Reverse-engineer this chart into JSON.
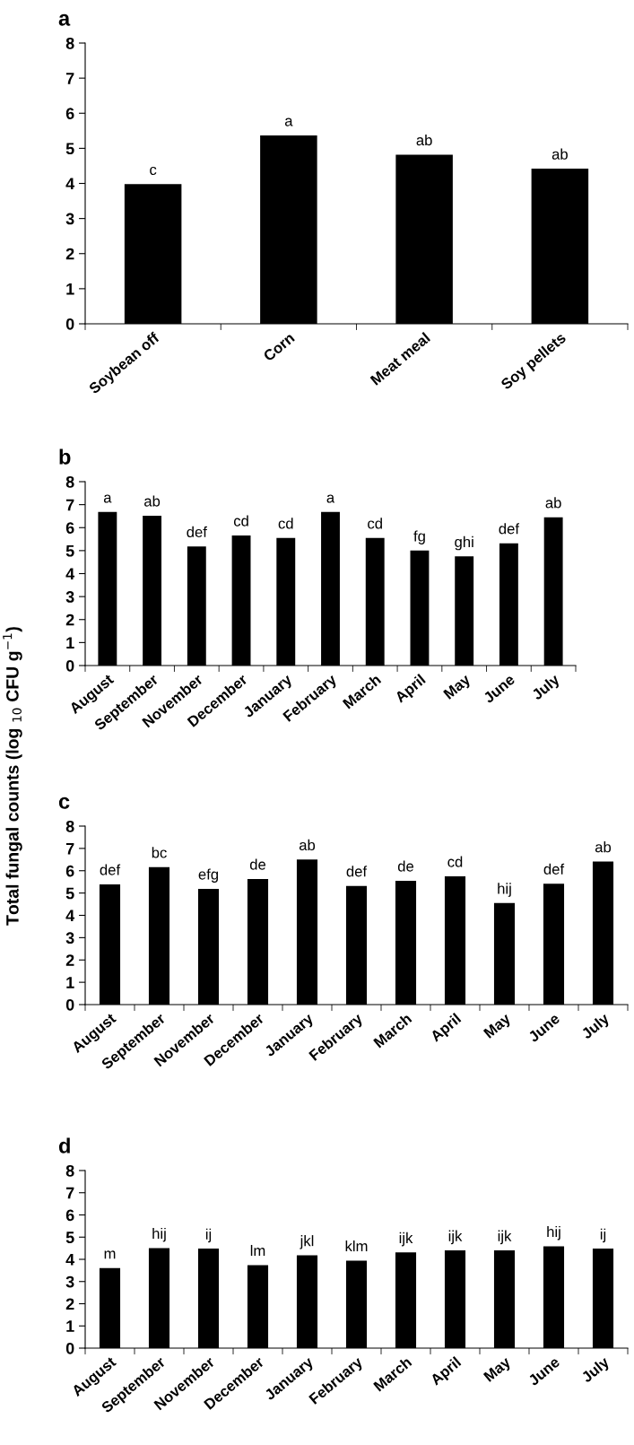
{
  "chart_data": [
    {
      "type": "bar",
      "title": "a",
      "categories": [
        "Soybean off",
        "Corn",
        "Meat meal",
        "Soy pellets"
      ],
      "values": [
        3.98,
        5.37,
        4.82,
        4.42
      ],
      "value_labels": [
        "c",
        "a",
        "ab",
        "ab"
      ],
      "color": "#000000",
      "ylim": [
        0,
        8
      ],
      "yticks": [
        0,
        1,
        2,
        3,
        4,
        5,
        6,
        7,
        8
      ],
      "grid": false,
      "legend": false
    },
    {
      "type": "bar",
      "title": "b",
      "ylabel": "Total fungal counts (log $_{10}$ CFU g$^{−1}$)",
      "categories": [
        "August",
        "September",
        "November",
        "December",
        "January",
        "February",
        "March",
        "April",
        "May",
        "June",
        "July"
      ],
      "values": [
        6.68,
        6.52,
        5.18,
        5.66,
        5.55,
        6.68,
        5.55,
        5.0,
        4.75,
        5.32,
        6.45
      ],
      "value_labels": [
        "a",
        "ab",
        "def",
        "cd",
        "cd",
        "a",
        "cd",
        "fg",
        "ghi",
        "def",
        "ab"
      ],
      "color": "#000000",
      "ylim": [
        0,
        8
      ],
      "yticks": [
        0,
        1,
        2,
        3,
        4,
        5,
        6,
        7,
        8
      ],
      "grid": false,
      "legend": false
    },
    {
      "type": "bar",
      "title": "c",
      "categories": [
        "August",
        "September",
        "November",
        "December",
        "January",
        "February",
        "March",
        "April",
        "May",
        "June",
        "July"
      ],
      "values": [
        5.39,
        6.16,
        5.19,
        5.63,
        6.5,
        5.32,
        5.55,
        5.75,
        4.55,
        5.42,
        6.41
      ],
      "value_labels": [
        "def",
        "bc",
        "efg",
        "de",
        "ab",
        "def",
        "de",
        "cd",
        "hij",
        "def",
        "ab"
      ],
      "color": "#000000",
      "ylim": [
        0,
        8
      ],
      "yticks": [
        0,
        1,
        2,
        3,
        4,
        5,
        6,
        7,
        8
      ],
      "grid": false,
      "legend": false
    },
    {
      "type": "bar",
      "title": "d",
      "categories": [
        "August",
        "September",
        "November",
        "December",
        "January",
        "February",
        "March",
        "April",
        "May",
        "June",
        "July"
      ],
      "values": [
        3.61,
        4.51,
        4.48,
        3.74,
        4.18,
        3.94,
        4.31,
        4.4,
        4.4,
        4.59,
        4.48
      ],
      "value_labels": [
        "m",
        "hij",
        "ij",
        "lm",
        "jkl",
        "klm",
        "ijk",
        "ijk",
        "ijk",
        "hij",
        "ij"
      ],
      "color": "#000000",
      "ylim": [
        0,
        8
      ],
      "yticks": [
        0,
        1,
        2,
        3,
        4,
        5,
        6,
        7,
        8
      ],
      "grid": false,
      "legend": false
    }
  ]
}
